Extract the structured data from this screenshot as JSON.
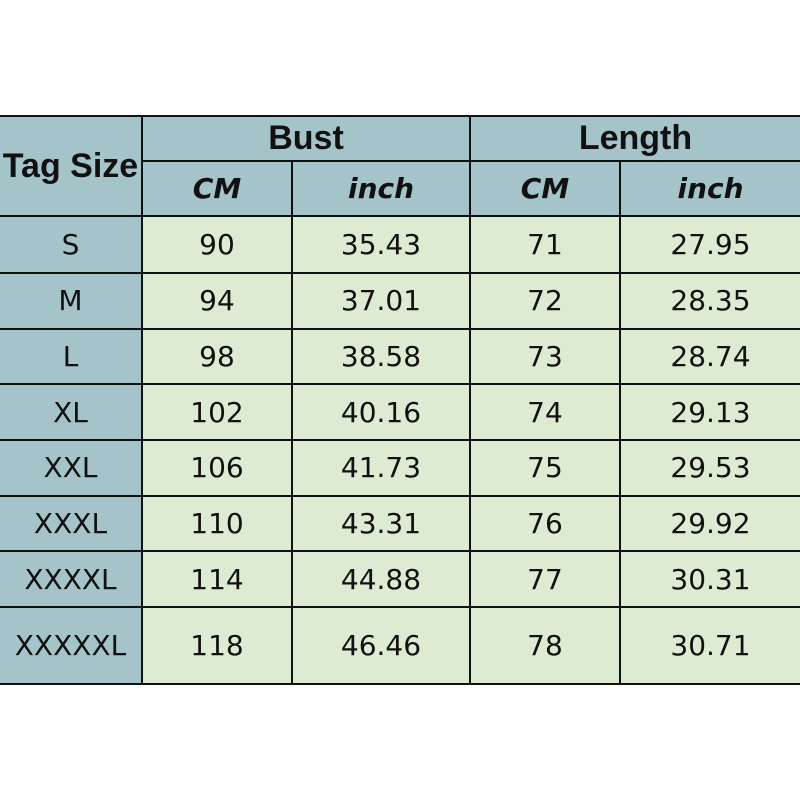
{
  "headers": {
    "tag_size": "Tag Size",
    "bust": "Bust",
    "length": "Length",
    "cm": "CM",
    "inch": "inch"
  },
  "colors": {
    "header": "#a4c4ca",
    "cell": "#deebd3"
  },
  "rows": [
    {
      "size": "S",
      "bust_cm": "90",
      "bust_inch": "35.43",
      "length_cm": "71",
      "length_inch": "27.95"
    },
    {
      "size": "M",
      "bust_cm": "94",
      "bust_inch": "37.01",
      "length_cm": "72",
      "length_inch": "28.35"
    },
    {
      "size": "L",
      "bust_cm": "98",
      "bust_inch": "38.58",
      "length_cm": "73",
      "length_inch": "28.74"
    },
    {
      "size": "XL",
      "bust_cm": "102",
      "bust_inch": "40.16",
      "length_cm": "74",
      "length_inch": "29.13"
    },
    {
      "size": "XXL",
      "bust_cm": "106",
      "bust_inch": "41.73",
      "length_cm": "75",
      "length_inch": "29.53"
    },
    {
      "size": "XXXL",
      "bust_cm": "110",
      "bust_inch": "43.31",
      "length_cm": "76",
      "length_inch": "29.92"
    },
    {
      "size": "XXXXL",
      "bust_cm": "114",
      "bust_inch": "44.88",
      "length_cm": "77",
      "length_inch": "30.31"
    },
    {
      "size": "XXXXXL",
      "bust_cm": "118",
      "bust_inch": "46.46",
      "length_cm": "78",
      "length_inch": "30.71"
    }
  ]
}
